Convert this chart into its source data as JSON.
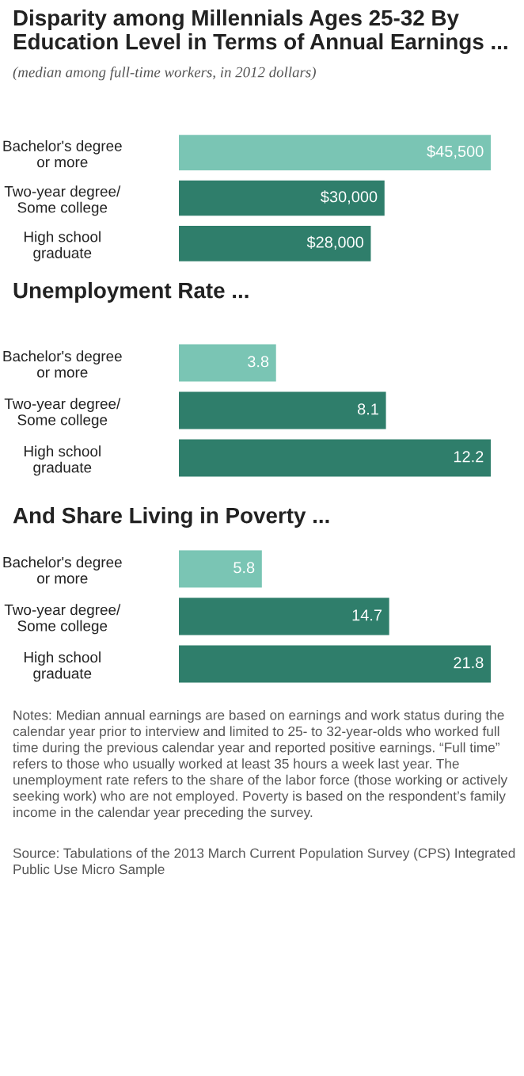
{
  "chart_data": [
    {
      "type": "bar",
      "orientation": "horizontal",
      "title": "Disparity among Millennials Ages 25-32 By Education Level in Terms of Annual Earnings ...",
      "subtitle": "(median among full-time workers, in 2012 dollars)",
      "categories": [
        "Bachelor's degree\nor more",
        "Two-year degree/\nSome college",
        "High school\ngraduate"
      ],
      "values": [
        45500,
        30000,
        28000
      ],
      "colors": [
        "#7ac5b4",
        "#2f7e6b",
        "#2f7e6b"
      ],
      "value_labels": [
        "$45,500",
        "$30,000",
        "$28,000"
      ],
      "tick_labels": "y",
      "grid": false,
      "legend": false
    },
    {
      "type": "bar",
      "orientation": "horizontal",
      "title": "Unemployment Rate ...",
      "categories": [
        "Bachelor's degree\nor more",
        "Two-year degree/\nSome college",
        "High school\ngraduate"
      ],
      "values": [
        3.8,
        8.1,
        12.2
      ],
      "colors": [
        "#7ac5b4",
        "#2f7e6b",
        "#2f7e6b"
      ],
      "data_labels": true,
      "tick_labels": "y",
      "grid": false,
      "legend": false
    },
    {
      "type": "bar",
      "orientation": "horizontal",
      "title": "And Share Living in Poverty ...",
      "categories": [
        "Bachelor's degree\nor more",
        "Two-year degree/\nSome college",
        "High school\ngraduate"
      ],
      "values": [
        5.8,
        14.7,
        21.8
      ],
      "colors": [
        "#7ac5b4",
        "#2f7e6b",
        "#2f7e6b"
      ],
      "data_labels": true,
      "tick_labels": "y",
      "grid": false,
      "legend": false,
      "annotations": [
        "Notes: Median annual earnings are based on earnings and work status during the calendar year prior to interview and limited to 25- to 32-year-olds who worked full time during the previous calendar year and reported positive earnings. “Full time” refers to those who usually worked at least 35 hours a week last year. The unemployment rate refers to the share of the labor force (those working or actively seeking work) who are not employed. Poverty is based on the respondent’s family income in the calendar year preceding the survey.",
        "Source: Tabulations of the 2013 March Current Population Survey (CPS) Integrated Public Use Micro Sample"
      ]
    }
  ]
}
